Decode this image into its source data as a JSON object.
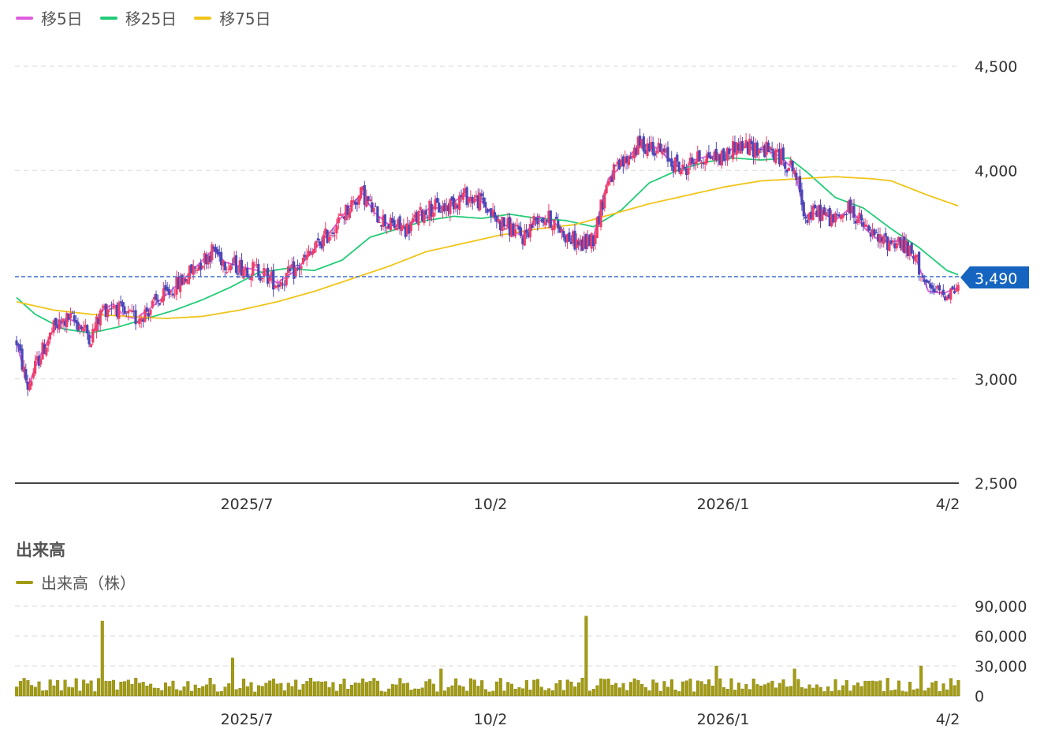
{
  "legend": [
    {
      "label": "移5日",
      "color": "#e05ce0"
    },
    {
      "label": "移25日",
      "color": "#22cc77"
    },
    {
      "label": "移75日",
      "color": "#f0c419"
    }
  ],
  "volume_section": {
    "title": "出来高",
    "legend_label": "出来高（株）",
    "legend_color": "#a39c12"
  },
  "current_price_label": "3,490",
  "colors": {
    "up": "#ee3d6a",
    "down": "#4b46b8",
    "ma5": "#e05ce0",
    "ma25": "#22cc77",
    "ma75": "#f0c419",
    "volume": "#a39c12",
    "price_tag": "#1565c0",
    "grid": "#d8d8d8"
  },
  "chart_data": [
    {
      "type": "candlestick",
      "y_ticks": [
        "4,500",
        "4,000",
        "3,000",
        "2,500"
      ],
      "ylim": [
        2500,
        4500
      ],
      "x_ticks": [
        "2025/7",
        "10/2",
        "2026/1",
        "4/2"
      ],
      "current_price": 3490,
      "series": [
        {
          "name": "移5日",
          "keypoints": [
            [
              0,
              3180
            ],
            [
              6,
              2960
            ],
            [
              12,
              3100
            ],
            [
              20,
              3240
            ],
            [
              28,
              3290
            ],
            [
              34,
              3260
            ],
            [
              40,
              3200
            ],
            [
              46,
              3330
            ],
            [
              52,
              3360
            ],
            [
              58,
              3300
            ],
            [
              64,
              3290
            ],
            [
              72,
              3340
            ],
            [
              80,
              3400
            ],
            [
              90,
              3480
            ],
            [
              100,
              3570
            ],
            [
              106,
              3620
            ],
            [
              112,
              3560
            ],
            [
              120,
              3540
            ],
            [
              130,
              3520
            ],
            [
              140,
              3460
            ],
            [
              150,
              3520
            ],
            [
              160,
              3620
            ],
            [
              170,
              3720
            ],
            [
              180,
              3840
            ],
            [
              186,
              3890
            ],
            [
              192,
              3800
            ],
            [
              200,
              3740
            ],
            [
              210,
              3720
            ],
            [
              216,
              3780
            ],
            [
              222,
              3820
            ],
            [
              230,
              3820
            ],
            [
              240,
              3880
            ],
            [
              250,
              3850
            ],
            [
              258,
              3760
            ],
            [
              266,
              3720
            ],
            [
              272,
              3680
            ],
            [
              280,
              3780
            ],
            [
              288,
              3760
            ],
            [
              296,
              3680
            ],
            [
              304,
              3640
            ],
            [
              310,
              3680
            ],
            [
              318,
              3960
            ],
            [
              326,
              4030
            ],
            [
              334,
              4120
            ],
            [
              342,
              4120
            ],
            [
              350,
              4060
            ],
            [
              358,
              4000
            ],
            [
              364,
              4050
            ],
            [
              372,
              4070
            ],
            [
              380,
              4060
            ],
            [
              386,
              4120
            ],
            [
              394,
              4110
            ],
            [
              402,
              4100
            ],
            [
              410,
              4070
            ],
            [
              418,
              4000
            ],
            [
              424,
              3780
            ],
            [
              432,
              3800
            ],
            [
              440,
              3760
            ],
            [
              448,
              3820
            ],
            [
              456,
              3720
            ],
            [
              464,
              3660
            ],
            [
              474,
              3660
            ],
            [
              484,
              3560
            ],
            [
              490,
              3420
            ],
            [
              498,
              3410
            ],
            [
              506,
              3440
            ]
          ]
        },
        {
          "name": "移25日",
          "keypoints": [
            [
              0,
              3390
            ],
            [
              10,
              3310
            ],
            [
              25,
              3240
            ],
            [
              40,
              3220
            ],
            [
              55,
              3250
            ],
            [
              70,
              3290
            ],
            [
              85,
              3330
            ],
            [
              100,
              3380
            ],
            [
              115,
              3440
            ],
            [
              130,
              3510
            ],
            [
              145,
              3530
            ],
            [
              160,
              3520
            ],
            [
              175,
              3570
            ],
            [
              190,
              3680
            ],
            [
              205,
              3720
            ],
            [
              220,
              3760
            ],
            [
              235,
              3780
            ],
            [
              250,
              3770
            ],
            [
              265,
              3790
            ],
            [
              280,
              3770
            ],
            [
              295,
              3760
            ],
            [
              310,
              3730
            ],
            [
              325,
              3810
            ],
            [
              340,
              3940
            ],
            [
              355,
              4000
            ],
            [
              370,
              4040
            ],
            [
              385,
              4060
            ],
            [
              400,
              4050
            ],
            [
              415,
              4060
            ],
            [
              425,
              3990
            ],
            [
              440,
              3870
            ],
            [
              455,
              3820
            ],
            [
              470,
              3720
            ],
            [
              485,
              3630
            ],
            [
              500,
              3520
            ],
            [
              506,
              3500
            ]
          ]
        },
        {
          "name": "移75日",
          "keypoints": [
            [
              0,
              3370
            ],
            [
              20,
              3330
            ],
            [
              40,
              3310
            ],
            [
              60,
              3300
            ],
            [
              80,
              3290
            ],
            [
              100,
              3300
            ],
            [
              120,
              3330
            ],
            [
              140,
              3370
            ],
            [
              160,
              3420
            ],
            [
              180,
              3480
            ],
            [
              200,
              3540
            ],
            [
              220,
              3610
            ],
            [
              240,
              3650
            ],
            [
              260,
              3690
            ],
            [
              280,
              3720
            ],
            [
              300,
              3740
            ],
            [
              320,
              3790
            ],
            [
              340,
              3840
            ],
            [
              360,
              3880
            ],
            [
              380,
              3920
            ],
            [
              400,
              3950
            ],
            [
              420,
              3960
            ],
            [
              440,
              3970
            ],
            [
              460,
              3960
            ],
            [
              470,
              3950
            ],
            [
              490,
              3880
            ],
            [
              506,
              3830
            ]
          ]
        }
      ]
    },
    {
      "type": "bar",
      "name": "出来高（株）",
      "y_ticks": [
        "90,000",
        "60,000",
        "30,000",
        "0"
      ],
      "ylim": [
        0,
        90000
      ],
      "spikes": [
        {
          "index": 47,
          "value": 75000
        },
        {
          "index": 116,
          "value": 38000
        },
        {
          "index": 228,
          "value": 27000
        },
        {
          "index": 306,
          "value": 80000
        },
        {
          "index": 377,
          "value": 30000
        },
        {
          "index": 418,
          "value": 27000
        },
        {
          "index": 486,
          "value": 30000
        }
      ],
      "typical_range": [
        4000,
        18000
      ]
    }
  ]
}
